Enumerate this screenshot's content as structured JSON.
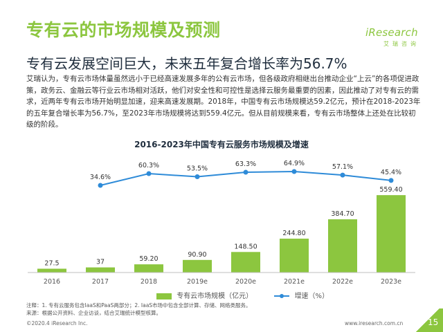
{
  "header": {
    "title": "专有云的市场规模及预测",
    "subtitle": "专有云发展空间巨大，未来五年复合增长率为56.7%"
  },
  "logo": {
    "name": "iResearch",
    "sub": "艾瑞咨询"
  },
  "paragraph": "艾瑞认为，专有云市场体量虽然远小于已经高速发展多年的公有云市场，但各级政府相继出台推动企业“上云”的各项促进政策，政务云、金融云等行业云市场相对活跃，他们对安全性和可控性是选择云服务最重要的因素，因此推动了对专有云的需求，近两年专有云市场开始明显加速，迎来高速发展期。2018年，中国专有云市场规模达59.2亿元，预计在2018-2023年的五年复合增长率为56.7%，至2023年市场规模将达到559.4亿元。但从目前规模来看，专有云市场整体上还处在比较初级的阶段。",
  "chart_data": {
    "type": "bar",
    "title": "2016-2023年中国专有云服务市场规模及增速",
    "categories": [
      "2016",
      "2017",
      "2018",
      "2019e",
      "2020e",
      "2021e",
      "2022e",
      "2023e"
    ],
    "series": [
      {
        "name": "专有云市场规模（亿元）",
        "type": "bar",
        "values": [
          27.5,
          37,
          59.2,
          90.9,
          148.5,
          244.8,
          384.7,
          559.4
        ],
        "labels": [
          "27.5",
          "37",
          "59.20",
          "90.90",
          "148.50",
          "244.80",
          "384.70",
          "559.40"
        ]
      },
      {
        "name": "增速（%）",
        "type": "line",
        "values": [
          null,
          34.6,
          60.3,
          53.5,
          63.3,
          64.9,
          57.1,
          45.4
        ],
        "labels": [
          "",
          "34.6%",
          "60.3%",
          "53.5%",
          "63.3%",
          "64.9%",
          "57.1%",
          "45.4%"
        ]
      }
    ],
    "colors": {
      "bar": "#8cc63f",
      "line": "#2e8bd8"
    },
    "legend_position": "bottom",
    "grid": false
  },
  "notes": [
    "注释：1. 专有云服务包含IaaS和PaaS两部分；2. IaaS市场中包含全部计算、存储、网络类服务。",
    "来源：根据公开资料、企业访谈，结合艾瑞统计模型核算。"
  ],
  "footer": {
    "copyright": "©2020.4 iResearch Inc.",
    "url": "www.iresearch.com.cn",
    "page": "15"
  }
}
